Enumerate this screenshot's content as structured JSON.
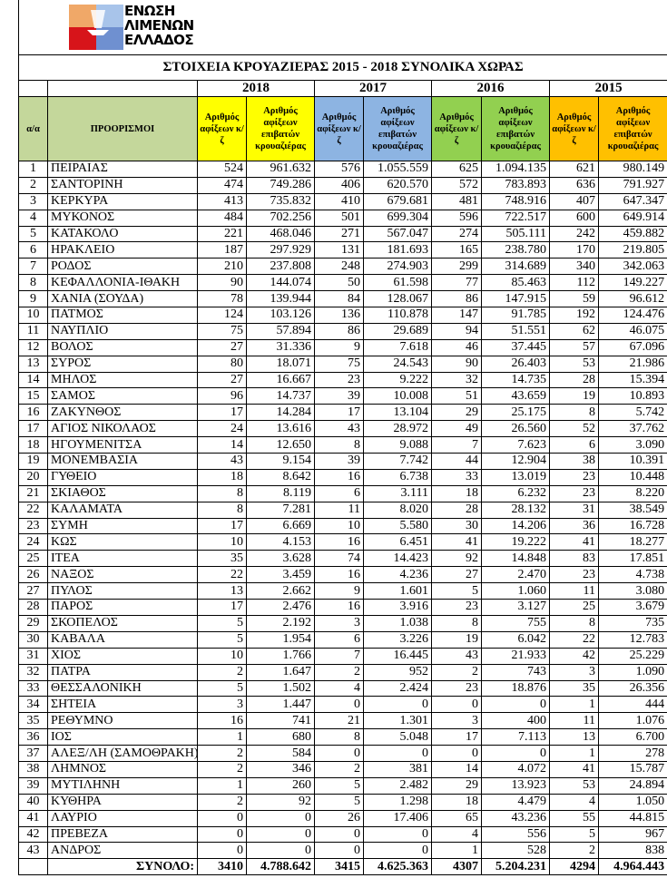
{
  "logo": {
    "lines": [
      "ΕΝΩΣΗ",
      "ΛΙΜΕΝΩΝ",
      "ΕΛΛΑΔΟΣ"
    ],
    "colors": {
      "orange": "#f0a868",
      "red": "#d7141a",
      "blue": "#6f90d0",
      "light_blue": "#a8c4ea"
    }
  },
  "title": "ΣΤΟΙΧΕΙΑ ΚΡΟΥΑΖΙΕΡΑΣ 2015 - 2018 ΣΥΝΟΛΙΚΑ ΧΩΡΑΣ",
  "years": [
    "2018",
    "2017",
    "2016",
    "2015"
  ],
  "year_colors": [
    "#ffff00",
    "#8db4e2",
    "#92d050",
    "#ffc000"
  ],
  "headers": {
    "index": "α/α",
    "destinations": "ΠΡΟΟΡΙΣΜΟΙ",
    "ships": "Αριθμός αφίξεων κ/ζ",
    "passengers": "Αριθμός αφίξεων επιβατών κρουαζιέρας"
  },
  "rows": [
    [
      "1",
      "ΠΕΙΡΑΙΑΣ",
      "524",
      "961.632",
      "576",
      "1.055.559",
      "625",
      "1.094.135",
      "621",
      "980.149"
    ],
    [
      "2",
      "ΣΑΝΤΟΡΙΝΗ",
      "474",
      "749.286",
      "406",
      "620.570",
      "572",
      "783.893",
      "636",
      "791.927"
    ],
    [
      "3",
      "ΚΕΡΚΥΡΑ",
      "413",
      "735.832",
      "410",
      "679.681",
      "481",
      "748.916",
      "407",
      "647.347"
    ],
    [
      "4",
      "ΜΥΚΟΝΟΣ",
      "484",
      "702.256",
      "501",
      "699.304",
      "596",
      "722.517",
      "600",
      "649.914"
    ],
    [
      "5",
      "ΚΑΤΑΚΟΛΟ",
      "221",
      "468.046",
      "271",
      "567.047",
      "274",
      "505.111",
      "242",
      "459.882"
    ],
    [
      "6",
      "ΗΡΑΚΛΕΙΟ",
      "187",
      "297.929",
      "131",
      "181.693",
      "165",
      "238.780",
      "170",
      "219.805"
    ],
    [
      "7",
      "ΡΟΔΟΣ",
      "210",
      "237.808",
      "248",
      "274.903",
      "299",
      "314.689",
      "340",
      "342.063"
    ],
    [
      "8",
      "ΚΕΦΑΛΛΟΝΙΑ-ΙΘΑΚΗ",
      "90",
      "144.074",
      "50",
      "61.598",
      "77",
      "85.463",
      "112",
      "149.227"
    ],
    [
      "9",
      "ΧΑΝΙΑ (ΣΟΥΔΑ)",
      "78",
      "139.944",
      "84",
      "128.067",
      "86",
      "147.915",
      "59",
      "96.612"
    ],
    [
      "10",
      "ΠΑΤΜΟΣ",
      "124",
      "103.126",
      "136",
      "110.878",
      "147",
      "91.785",
      "192",
      "124.476"
    ],
    [
      "11",
      "ΝΑΥΠΛΙΟ",
      "75",
      "57.894",
      "86",
      "29.689",
      "94",
      "51.551",
      "62",
      "46.075"
    ],
    [
      "12",
      "ΒΟΛΟΣ",
      "27",
      "31.336",
      "9",
      "7.618",
      "46",
      "37.445",
      "57",
      "67.096"
    ],
    [
      "13",
      "ΣΥΡΟΣ",
      "80",
      "18.071",
      "75",
      "24.543",
      "90",
      "26.403",
      "53",
      "21.986"
    ],
    [
      "14",
      "ΜΗΛΟΣ",
      "27",
      "16.667",
      "23",
      "9.222",
      "32",
      "14.735",
      "28",
      "15.394"
    ],
    [
      "15",
      "ΣΑΜΟΣ",
      "96",
      "14.737",
      "39",
      "10.008",
      "51",
      "43.659",
      "19",
      "10.893"
    ],
    [
      "16",
      "ΖΑΚΥΝΘΟΣ",
      "17",
      "14.284",
      "17",
      "13.104",
      "29",
      "25.175",
      "8",
      "5.742"
    ],
    [
      "17",
      "ΑΓΙΟΣ ΝΙΚΟΛΑΟΣ",
      "24",
      "13.616",
      "43",
      "28.972",
      "49",
      "26.560",
      "52",
      "37.762"
    ],
    [
      "18",
      "ΗΓΟΥΜΕΝΙΤΣΑ",
      "14",
      "12.650",
      "8",
      "9.088",
      "7",
      "7.623",
      "6",
      "3.090"
    ],
    [
      "19",
      "ΜΟΝΕΜΒΑΣΙΑ",
      "43",
      "9.154",
      "39",
      "7.742",
      "44",
      "12.904",
      "38",
      "10.391"
    ],
    [
      "20",
      "ΓΥΘΕΙΟ",
      "18",
      "8.642",
      "16",
      "6.738",
      "33",
      "13.019",
      "23",
      "10.448"
    ],
    [
      "21",
      "ΣΚΙΑΘΟΣ",
      "8",
      "8.119",
      "6",
      "3.111",
      "18",
      "6.232",
      "23",
      "8.220"
    ],
    [
      "22",
      "ΚΑΛΑΜΑΤΑ",
      "8",
      "7.281",
      "11",
      "8.020",
      "28",
      "28.132",
      "31",
      "38.549"
    ],
    [
      "23",
      "ΣΥΜΗ",
      "17",
      "6.669",
      "10",
      "5.580",
      "30",
      "14.206",
      "36",
      "16.728"
    ],
    [
      "24",
      "ΚΩΣ",
      "10",
      "4.153",
      "16",
      "6.451",
      "41",
      "19.222",
      "41",
      "18.277"
    ],
    [
      "25",
      "ΙΤΕΑ",
      "35",
      "3.628",
      "74",
      "14.423",
      "92",
      "14.848",
      "83",
      "17.851"
    ],
    [
      "26",
      "ΝΑΞΟΣ",
      "22",
      "3.459",
      "16",
      "4.236",
      "27",
      "2.470",
      "23",
      "4.738"
    ],
    [
      "27",
      "ΠΥΛΟΣ",
      "13",
      "2.662",
      "9",
      "1.601",
      "5",
      "1.060",
      "11",
      "3.080"
    ],
    [
      "28",
      "ΠΑΡΟΣ",
      "17",
      "2.476",
      "16",
      "3.916",
      "23",
      "3.127",
      "25",
      "3.679"
    ],
    [
      "29",
      "ΣΚΟΠΕΛΟΣ",
      "5",
      "2.192",
      "3",
      "1.038",
      "8",
      "755",
      "8",
      "735"
    ],
    [
      "30",
      "ΚΑΒΑΛΑ",
      "5",
      "1.954",
      "6",
      "3.226",
      "19",
      "6.042",
      "22",
      "12.783"
    ],
    [
      "31",
      "ΧΙΟΣ",
      "10",
      "1.766",
      "7",
      "16.445",
      "43",
      "21.933",
      "42",
      "25.229"
    ],
    [
      "32",
      "ΠΑΤΡΑ",
      "2",
      "1.647",
      "2",
      "952",
      "2",
      "743",
      "3",
      "1.090"
    ],
    [
      "33",
      "ΘΕΣΣΑΛΟΝΙΚΗ",
      "5",
      "1.502",
      "4",
      "2.424",
      "23",
      "18.876",
      "35",
      "26.356"
    ],
    [
      "34",
      "ΣΗΤΕΙΑ",
      "3",
      "1.447",
      "0",
      "0",
      "0",
      "0",
      "1",
      "444"
    ],
    [
      "35",
      "ΡΕΘΥΜΝΟ",
      "16",
      "741",
      "21",
      "1.301",
      "3",
      "400",
      "11",
      "1.076"
    ],
    [
      "36",
      "ΙΟΣ",
      "1",
      "680",
      "8",
      "5.048",
      "17",
      "7.113",
      "13",
      "6.700"
    ],
    [
      "37",
      "ΑΛΕΞ/ΛΗ (ΣΑΜΟΘΡΑΚΗ)",
      "2",
      "584",
      "0",
      "0",
      "0",
      "0",
      "1",
      "278"
    ],
    [
      "38",
      "ΛΗΜΝΟΣ",
      "2",
      "346",
      "2",
      "381",
      "14",
      "4.072",
      "41",
      "15.787"
    ],
    [
      "39",
      "ΜΥΤΙΛΗΝΗ",
      "1",
      "260",
      "5",
      "2.482",
      "29",
      "13.923",
      "53",
      "24.894"
    ],
    [
      "40",
      "ΚΥΘΗΡΑ",
      "2",
      "92",
      "5",
      "1.298",
      "18",
      "4.479",
      "4",
      "1.050"
    ],
    [
      "41",
      "ΛΑΥΡΙΟ",
      "0",
      "0",
      "26",
      "17.406",
      "65",
      "43.236",
      "55",
      "44.815"
    ],
    [
      "42",
      "ΠΡΕΒΕΖΑ",
      "0",
      "0",
      "0",
      "0",
      "4",
      "556",
      "5",
      "967"
    ],
    [
      "43",
      "ΑΝΔΡΟΣ",
      "0",
      "0",
      "0",
      "0",
      "1",
      "528",
      "2",
      "838"
    ]
  ],
  "total": {
    "label": "ΣΥΝΟΛΟ:",
    "values": [
      "3410",
      "4.788.642",
      "3415",
      "4.625.363",
      "4307",
      "5.204.231",
      "4294",
      "4.964.443"
    ]
  }
}
